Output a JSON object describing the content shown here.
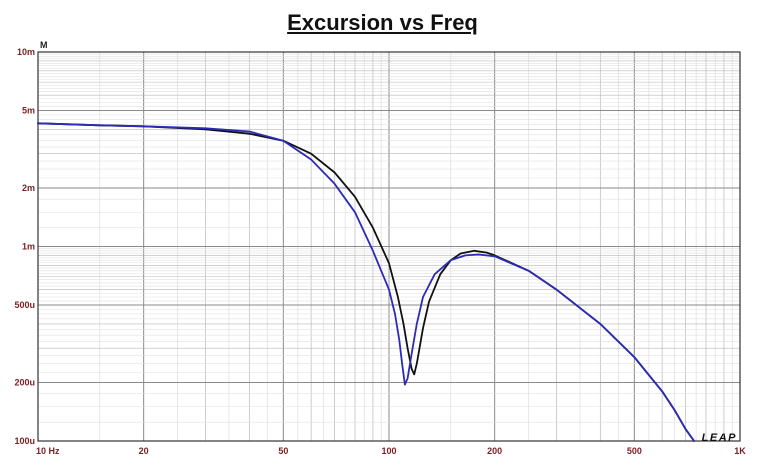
{
  "chart_data": {
    "type": "line",
    "title": "Excursion vs Freq",
    "y_unit_label": "M",
    "x_scale": "log",
    "y_scale": "log",
    "xlim": [
      10,
      1000
    ],
    "ylim": [
      0.0001,
      0.01
    ],
    "grid": true,
    "x_ticks": [
      {
        "value": 10,
        "label": "10  Hz"
      },
      {
        "value": 20,
        "label": "20"
      },
      {
        "value": 50,
        "label": "50"
      },
      {
        "value": 100,
        "label": "100"
      },
      {
        "value": 200,
        "label": "200"
      },
      {
        "value": 500,
        "label": "500"
      },
      {
        "value": 1000,
        "label": "1K"
      }
    ],
    "y_ticks": [
      {
        "value": 0.01,
        "label": "10m"
      },
      {
        "value": 0.005,
        "label": "5m"
      },
      {
        "value": 0.002,
        "label": "2m"
      },
      {
        "value": 0.001,
        "label": "1m"
      },
      {
        "value": 0.0005,
        "label": "500u"
      },
      {
        "value": 0.0002,
        "label": "200u"
      },
      {
        "value": 0.0001,
        "label": "100u"
      }
    ],
    "series": [
      {
        "color": "#111111",
        "points": [
          [
            10,
            0.0043
          ],
          [
            15,
            0.0042
          ],
          [
            20,
            0.00415
          ],
          [
            30,
            0.004
          ],
          [
            40,
            0.0038
          ],
          [
            50,
            0.0035
          ],
          [
            60,
            0.003
          ],
          [
            70,
            0.0024
          ],
          [
            80,
            0.0018
          ],
          [
            90,
            0.00125
          ],
          [
            100,
            0.00082
          ],
          [
            106,
            0.00055
          ],
          [
            110,
            0.0004
          ],
          [
            113,
            0.0003
          ],
          [
            116,
            0.000235
          ],
          [
            118,
            0.00022
          ],
          [
            120,
            0.00025
          ],
          [
            125,
            0.00038
          ],
          [
            130,
            0.00052
          ],
          [
            140,
            0.00072
          ],
          [
            150,
            0.00085
          ],
          [
            160,
            0.00092
          ],
          [
            175,
            0.00095
          ],
          [
            190,
            0.00093
          ],
          [
            200,
            0.0009
          ],
          [
            250,
            0.00075
          ],
          [
            300,
            0.0006
          ],
          [
            400,
            0.0004
          ],
          [
            500,
            0.00027
          ],
          [
            600,
            0.00018
          ],
          [
            650,
            0.000145
          ],
          [
            700,
            0.000115
          ],
          [
            740,
            0.0001
          ]
        ]
      },
      {
        "color": "#2b2bb8",
        "points": [
          [
            10,
            0.0043
          ],
          [
            15,
            0.0042
          ],
          [
            20,
            0.00415
          ],
          [
            30,
            0.00405
          ],
          [
            40,
            0.0039
          ],
          [
            50,
            0.0035
          ],
          [
            60,
            0.0028
          ],
          [
            70,
            0.0021
          ],
          [
            80,
            0.0015
          ],
          [
            90,
            0.00095
          ],
          [
            100,
            0.0006
          ],
          [
            104,
            0.00045
          ],
          [
            107,
            0.00033
          ],
          [
            109,
            0.00025
          ],
          [
            111,
            0.000195
          ],
          [
            113,
            0.00021
          ],
          [
            116,
            0.00028
          ],
          [
            120,
            0.0004
          ],
          [
            125,
            0.00055
          ],
          [
            135,
            0.00072
          ],
          [
            150,
            0.00085
          ],
          [
            165,
            0.0009
          ],
          [
            180,
            0.00091
          ],
          [
            200,
            0.00089
          ],
          [
            250,
            0.00075
          ],
          [
            300,
            0.0006
          ],
          [
            400,
            0.0004
          ],
          [
            500,
            0.00027
          ],
          [
            600,
            0.00018
          ],
          [
            650,
            0.000145
          ],
          [
            700,
            0.000115
          ],
          [
            740,
            0.0001
          ]
        ]
      }
    ]
  },
  "watermark": "LEAP"
}
